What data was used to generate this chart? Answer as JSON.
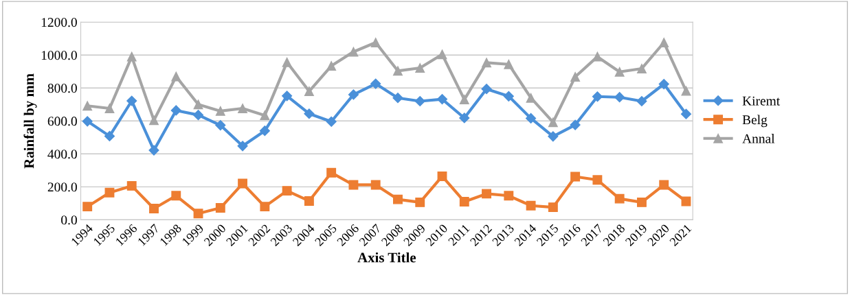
{
  "chart_data": {
    "type": "line",
    "xlabel": "Axis Title",
    "ylabel": "Rainfall by mm",
    "categories": [
      "1994",
      "1995",
      "1996",
      "1997",
      "1998",
      "1999",
      "2000",
      "2001",
      "2002",
      "2003",
      "2004",
      "2005",
      "2006",
      "2007",
      "2008",
      "2009",
      "2010",
      "2011",
      "2012",
      "2013",
      "2014",
      "2015",
      "2016",
      "2017",
      "2018",
      "2019",
      "2020",
      "2021"
    ],
    "series": [
      {
        "name": "Kiremt",
        "color": "#4a90d9",
        "marker": "diamond",
        "values": [
          598,
          508,
          722,
          422,
          664,
          636,
          574,
          448,
          540,
          752,
          644,
          596,
          760,
          826,
          740,
          720,
          732,
          618,
          794,
          750,
          616,
          506,
          576,
          748,
          744,
          720,
          824,
          642
        ]
      },
      {
        "name": "Belg",
        "color": "#ed7d31",
        "marker": "square",
        "values": [
          80,
          165,
          206,
          68,
          146,
          38,
          72,
          220,
          80,
          176,
          114,
          286,
          212,
          212,
          124,
          106,
          264,
          110,
          158,
          146,
          86,
          76,
          262,
          242,
          128,
          106,
          212,
          112
        ]
      },
      {
        "name": "Annal",
        "color": "#a5a5a5",
        "marker": "triangle",
        "values": [
          692,
          676,
          990,
          604,
          870,
          700,
          660,
          676,
          634,
          956,
          780,
          934,
          1020,
          1076,
          904,
          922,
          1004,
          730,
          954,
          944,
          740,
          592,
          868,
          990,
          898,
          918,
          1076,
          782
        ]
      }
    ],
    "ylim": [
      0,
      1200
    ],
    "yticks": [
      {
        "value": 0,
        "label": "0.0"
      },
      {
        "value": 200,
        "label": "200.0"
      },
      {
        "value": 400,
        "label": "400.0"
      },
      {
        "value": 600,
        "label": "600.0"
      },
      {
        "value": 800,
        "label": "800.0"
      },
      {
        "value": 1000,
        "label": "1000.0"
      },
      {
        "value": 1200,
        "label": "1200.0"
      }
    ],
    "grid": "y",
    "legend": "right",
    "line_style": "solid"
  }
}
